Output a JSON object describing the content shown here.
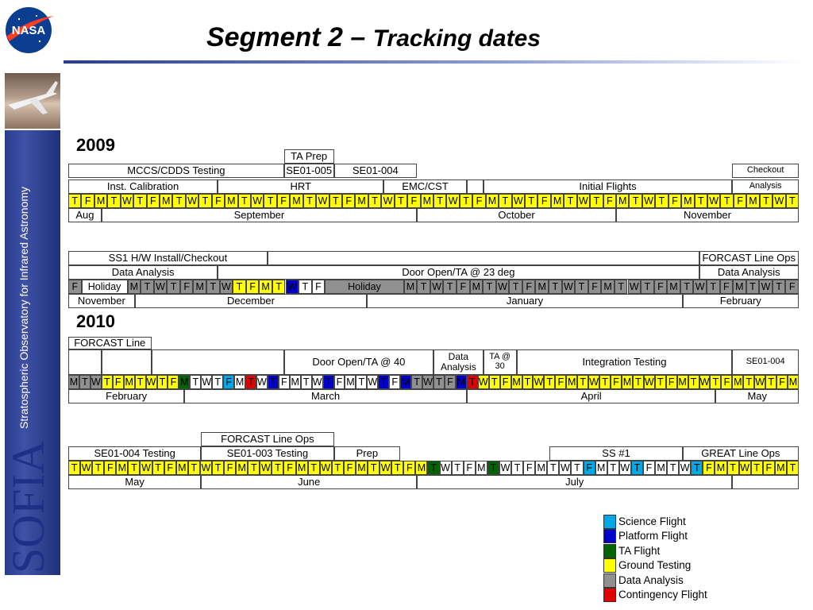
{
  "header": {
    "title_main": "Segment 2 –",
    "title_sub": "Tracking dates"
  },
  "sidebar": {
    "vertical_subtitle": "Stratospheric Observatory for Infrared Astronomy",
    "vertical_title": "SOFIA",
    "logo_text": "NASA"
  },
  "colors": {
    "Y": "#ffff00",
    "S": "#00a8e8",
    "P": "#0000cc",
    "A": "#006400",
    "G": "#909090",
    "C": "#e00000",
    "W": "#ffffff"
  },
  "legend": [
    {
      "label": "Science Flight",
      "color": "#00a8e8"
    },
    {
      "label": "Platform Flight",
      "color": "#0000cc"
    },
    {
      "label": "TA Flight",
      "color": "#006400"
    },
    {
      "label": "Ground Testing",
      "color": "#ffff00"
    },
    {
      "label": "Data Analysis",
      "color": "#909090"
    },
    {
      "label": "Contingency Flight",
      "color": "#e00000"
    }
  ],
  "years": [
    "2009",
    "2010"
  ],
  "blocks": [
    {
      "bars": [
        [
          {
            "c1": 0,
            "c2": 0,
            "text": ""
          },
          {
            "c1": 13,
            "c2": 16,
            "text": "TA Prep"
          },
          {
            "c1": 0,
            "c2": 0,
            "text": ""
          }
        ],
        [
          {
            "c1": 0,
            "c2": 13,
            "text": "MCCS/CDDS Testing"
          },
          {
            "c1": 13,
            "c2": 16,
            "text": "SE01-005"
          },
          {
            "c1": 16,
            "c2": 21,
            "text": "SE01-004"
          },
          {
            "c1": 0,
            "c2": 0,
            "text": ""
          },
          {
            "c1": 40,
            "c2": 44,
            "text": "Checkout"
          }
        ],
        [
          {
            "c1": 0,
            "c2": 9,
            "text": "Inst. Calibration"
          },
          {
            "c1": 9,
            "c2": 19,
            "text": "HRT"
          },
          {
            "c1": 19,
            "c2": 24,
            "text": "EMC/CST"
          },
          {
            "c1": 24,
            "c2": 25,
            "text": ""
          },
          {
            "c1": 25,
            "c2": 40,
            "text": "Initial Flights"
          },
          {
            "c1": 40,
            "c2": 44,
            "text": "Analysis"
          }
        ]
      ],
      "days": "TFMTWTFMTWTFMTWTFMTWTFMTWTFMTWTFMTWTFMTWTFMTWTFMTWTFMTWT",
      "day_colors": "YYYYYYYYYYYYYYYYYYYYYYYYYYYYYYYYYYYYYYYYYYYYYYYYYYYYYYYY",
      "months": [
        {
          "c1": 0,
          "c2": 2,
          "text": "Aug"
        },
        {
          "c1": 2,
          "c2": 21,
          "text": "September"
        },
        {
          "c1": 21,
          "c2": 33,
          "text": "October"
        },
        {
          "c1": 33,
          "c2": 44,
          "text": "November"
        }
      ]
    },
    {
      "bars": [
        [
          {
            "c1": 0,
            "c2": 12,
            "text": "SS1 H/W Install/Checkout"
          },
          {
            "c1": 12,
            "c2": 38,
            "text": ""
          },
          {
            "c1": 38,
            "c2": 44,
            "text": "FORCAST Line Ops"
          }
        ],
        [
          {
            "c1": 0,
            "c2": 9,
            "text": "Data Analysis"
          },
          {
            "c1": 9,
            "c2": 38,
            "text": "Door Open/TA @ 23 deg"
          },
          {
            "c1": 38,
            "c2": 44,
            "text": "Data Analysis"
          }
        ],
        []
      ],
      "days": "FHolidayMTWTFMTWTFMTWTFHolidayMTWTFMTWTFMTWTFMTWTFMTWTFMTWTF",
      "day_colors": "GWGGGGGGGGYYYYPWWGGGGGGGGGGGGGGGGGGGGGGGGGGGGGGGGGGGGGGGGGGG",
      "months": [
        {
          "c1": 0,
          "c2": 4,
          "text": "November"
        },
        {
          "c1": 4,
          "c2": 18,
          "text": "December"
        },
        {
          "c1": 18,
          "c2": 37,
          "text": "January"
        },
        {
          "c1": 37,
          "c2": 44,
          "text": "February"
        }
      ]
    },
    {
      "bars": [
        [
          {
            "c1": 0,
            "c2": 5,
            "text": "FORCAST Line"
          }
        ],
        [
          {
            "c1": 0,
            "c2": 2,
            "text": ""
          },
          {
            "c1": 2,
            "c2": 5,
            "text": ""
          },
          {
            "c1": 5,
            "c2": 13,
            "text": ""
          },
          {
            "c1": 13,
            "c2": 22,
            "text": "Door Open/TA @ 40"
          },
          {
            "c1": 22,
            "c2": 25,
            "text": "Data Analysis"
          },
          {
            "c1": 25,
            "c2": 27,
            "text": "TA @ 30"
          },
          {
            "c1": 27,
            "c2": 40,
            "text": "Integration Testing"
          },
          {
            "c1": 40,
            "c2": 44,
            "text": "SE01-004"
          }
        ],
        []
      ],
      "days": "MTWTFMTWTFMTWTFMTWTFMTWTFMTWTFMTWTFMTWTFMTWTFMTWTFMTWTFMTWTFMTWTFM",
      "day_colors": "GGGYYYYYYYAWWWSWCWPWWWWPWWWWPWPGGGGPCYYYYYYYYYYYYYYYYYYYYYYYYYYYYY",
      "months": [
        {
          "c1": 0,
          "c2": 7,
          "text": "February"
        },
        {
          "c1": 7,
          "c2": 24,
          "text": "March"
        },
        {
          "c1": 24,
          "c2": 39,
          "text": "April"
        },
        {
          "c1": 39,
          "c2": 44,
          "text": "May"
        }
      ]
    },
    {
      "bars": [
        [
          {
            "c1": 8,
            "c2": 16,
            "text": "FORCAST Line Ops"
          }
        ],
        [
          {
            "c1": 0,
            "c2": 8,
            "text": "SE01-004 Testing"
          },
          {
            "c1": 8,
            "c2": 16,
            "text": "SE01-003 Testing"
          },
          {
            "c1": 16,
            "c2": 20,
            "text": "Prep"
          },
          {
            "c1": 29,
            "c2": 37,
            "text": "SS #1"
          },
          {
            "c1": 37,
            "c2": 44,
            "text": "GREAT Line Ops"
          }
        ],
        []
      ],
      "days": "TWTFMTWTFMTWTFMTWTFMTWTFMTWTFMTWTFMTWTFMTWTFMTWTFMTWTFMTWTFMT",
      "day_colors": "YYYYYYYYYYYYYYYYYYYYYYYYYYYYYYAWWWWAWWWWWWWSWWWSWWWWSYYYYYYYYYY",
      "months": [
        {
          "c1": 0,
          "c2": 8,
          "text": "May"
        },
        {
          "c1": 8,
          "c2": 21,
          "text": "June"
        },
        {
          "c1": 21,
          "c2": 40,
          "text": "July"
        },
        {
          "c1": 40,
          "c2": 44,
          "text": ""
        }
      ]
    }
  ]
}
